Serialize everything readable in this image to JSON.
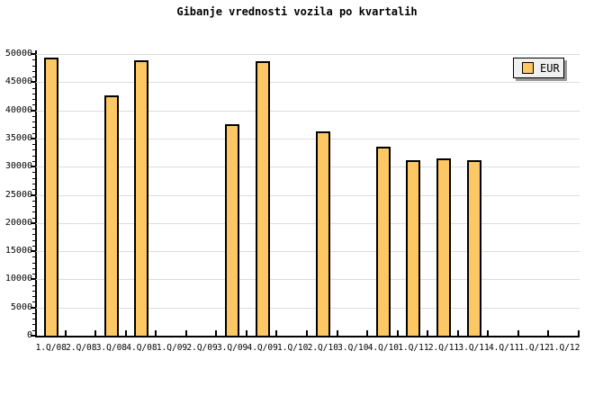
{
  "title": "Gibanje vrednosti vozila po kvartalih",
  "legend": {
    "label": "EUR",
    "swatch_color": "#fdc863",
    "background_color": "#f0f0f0",
    "border_color": "#000000",
    "shadow_color": "#999999",
    "position": "top-right"
  },
  "colors": {
    "bar_fill": "#fdc863",
    "bar_border": "#000000",
    "gridline": "#dcdcdc",
    "axis": "#000000",
    "background": "#ffffff",
    "text": "#000000"
  },
  "chart_data": {
    "type": "bar",
    "title": "Gibanje vrednosti vozila po kvartalih",
    "xlabel": "",
    "ylabel": "",
    "categories": [
      "1.Q/08",
      "2.Q/08",
      "3.Q/08",
      "4.Q/08",
      "1.Q/09",
      "2.Q/09",
      "3.Q/09",
      "4.Q/09",
      "1.Q/10",
      "2.Q/10",
      "3.Q/10",
      "4.Q/10",
      "1.Q/11",
      "2.Q/11",
      "3.Q/11",
      "4.Q/11",
      "1.Q/12",
      "1.Q/12"
    ],
    "series": [
      {
        "name": "EUR",
        "values": [
          49400,
          null,
          42600,
          48900,
          null,
          null,
          37600,
          48700,
          null,
          36300,
          null,
          33500,
          31200,
          31400,
          31200,
          null,
          null,
          null
        ]
      }
    ],
    "ylim": [
      0,
      50000
    ],
    "ytick_major": 5000,
    "ytick_minor": 1000,
    "ytick_labels": [
      "0",
      "5000",
      "10000",
      "15000",
      "20000",
      "25000",
      "30000",
      "35000",
      "40000",
      "45000",
      "50000"
    ],
    "grid": "horizontal-major",
    "legend_position": "top-right"
  }
}
